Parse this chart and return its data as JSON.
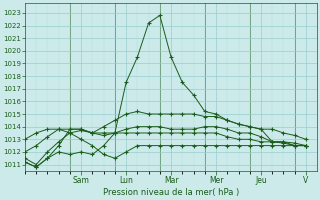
{
  "background_color": "#cceaea",
  "grid_color_major": "#99cccc",
  "grid_color_minor": "#b3dddd",
  "line_color": "#1a5c1a",
  "text_color": "#1a5c1a",
  "xlabel": "Pression niveau de la mer( hPa )",
  "ylim": [
    1010.5,
    1023.8
  ],
  "yticks": [
    1011,
    1012,
    1013,
    1014,
    1015,
    1016,
    1017,
    1018,
    1019,
    1020,
    1021,
    1022,
    1023
  ],
  "xlim": [
    0,
    13
  ],
  "day_labels": [
    "Sam",
    "Lun",
    "Mar",
    "Mer",
    "Jeu",
    "V"
  ],
  "day_positions": [
    2.5,
    4.5,
    6.5,
    8.5,
    10.5,
    12.5
  ],
  "vline_positions": [
    2.0,
    4.0,
    6.0,
    8.0,
    10.0,
    12.0
  ],
  "lines": [
    {
      "x": [
        0,
        0.5,
        1.0,
        1.5,
        2.0,
        2.5,
        3.0,
        3.5,
        4.0,
        4.5,
        5.0,
        5.5,
        6.0,
        6.5,
        7.0,
        7.5,
        8.0,
        8.5,
        9.0,
        9.5,
        10.0,
        10.5,
        11.0,
        11.5,
        12.0,
        12.5
      ],
      "y": [
        1011.2,
        1010.8,
        1011.5,
        1012.5,
        1013.8,
        1013.8,
        1013.5,
        1013.3,
        1013.5,
        1013.5,
        1013.5,
        1013.5,
        1013.5,
        1013.5,
        1013.5,
        1013.5,
        1013.5,
        1013.5,
        1013.2,
        1013.0,
        1013.0,
        1012.8,
        1012.8,
        1012.7,
        1012.5,
        1012.5
      ]
    },
    {
      "x": [
        0,
        0.5,
        1.0,
        1.5,
        2.0,
        2.5,
        3.0,
        3.5,
        4.0,
        4.5,
        5.0,
        5.5,
        6.0,
        6.5,
        7.0,
        7.5,
        8.0,
        8.5,
        9.0,
        9.5,
        10.0,
        10.5,
        11.0,
        11.5,
        12.0,
        12.5
      ],
      "y": [
        1011.5,
        1011.0,
        1012.0,
        1012.8,
        1013.5,
        1013.7,
        1013.5,
        1014.0,
        1014.5,
        1015.0,
        1015.2,
        1015.0,
        1015.0,
        1015.0,
        1015.0,
        1015.0,
        1014.8,
        1014.8,
        1014.5,
        1014.2,
        1014.0,
        1013.8,
        1013.8,
        1013.5,
        1013.3,
        1013.0
      ]
    },
    {
      "x": [
        0,
        0.5,
        1.0,
        1.5,
        2.0,
        2.5,
        3.0,
        3.5,
        4.0,
        4.5,
        5.0,
        5.5,
        6.0,
        6.5,
        7.0,
        7.5,
        8.0,
        8.5,
        9.0,
        9.5,
        10.0,
        10.5,
        11.0,
        11.5,
        12.0,
        12.5
      ],
      "y": [
        1012.0,
        1012.5,
        1013.2,
        1013.8,
        1013.8,
        1013.8,
        1013.5,
        1013.5,
        1013.5,
        1013.8,
        1014.0,
        1014.0,
        1014.0,
        1013.8,
        1013.8,
        1013.8,
        1014.0,
        1014.0,
        1013.8,
        1013.5,
        1013.5,
        1013.2,
        1012.8,
        1012.8,
        1012.5,
        1012.5
      ]
    },
    {
      "x": [
        0.0,
        0.5,
        1.0,
        1.5,
        2.0,
        2.5,
        3.0,
        3.5,
        4.0,
        4.5,
        5.0,
        5.5,
        6.0,
        6.5,
        7.0,
        7.5,
        8.0,
        8.5,
        9.0,
        9.5,
        10.0,
        10.5,
        11.0,
        11.5,
        12.0,
        12.5
      ],
      "y": [
        1013.0,
        1013.5,
        1013.8,
        1013.8,
        1013.5,
        1013.0,
        1012.5,
        1011.8,
        1011.5,
        1012.0,
        1012.5,
        1012.5,
        1012.5,
        1012.5,
        1012.5,
        1012.5,
        1012.5,
        1012.5,
        1012.5,
        1012.5,
        1012.5,
        1012.5,
        1012.5,
        1012.5,
        1012.5,
        1012.5
      ]
    },
    {
      "x": [
        0,
        0.5,
        1.0,
        1.5,
        2.0,
        2.5,
        3.0,
        3.5,
        4.0,
        4.5,
        5.0,
        5.5,
        6.0,
        6.5,
        7.0,
        7.5,
        8.0,
        8.5,
        9.0,
        9.5,
        10.0,
        10.5,
        11.0,
        11.5,
        12.0,
        12.5
      ],
      "y": [
        1011.2,
        1010.8,
        1011.5,
        1012.0,
        1011.8,
        1012.0,
        1011.8,
        1012.5,
        1013.5,
        1017.5,
        1019.5,
        1022.2,
        1022.8,
        1019.5,
        1017.5,
        1016.5,
        1015.2,
        1015.0,
        1014.5,
        1014.2,
        1014.0,
        1013.8,
        1012.8,
        1012.8,
        1012.7,
        1012.5
      ]
    }
  ],
  "figsize": [
    3.2,
    2.0
  ],
  "dpi": 100
}
